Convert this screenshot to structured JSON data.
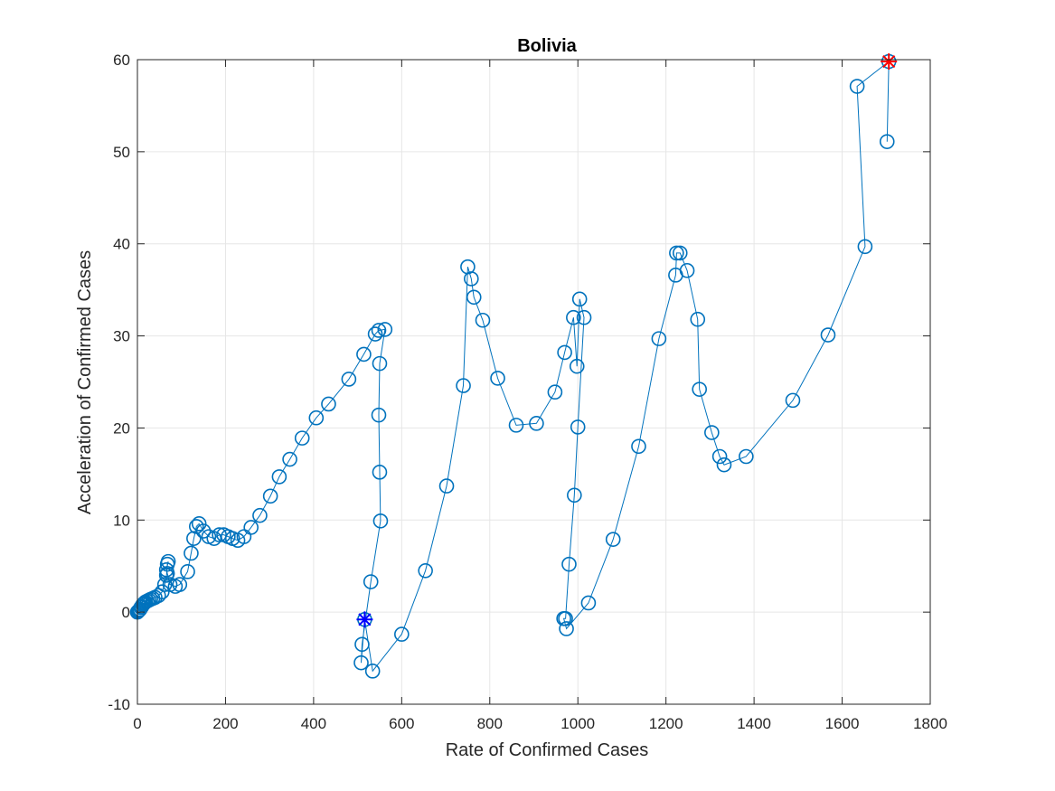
{
  "chart_data": {
    "type": "scatter",
    "title": "Bolivia",
    "xlabel": "Rate of Confirmed Cases",
    "ylabel": "Acceleration of Confirmed Cases",
    "xlim": [
      0,
      1800
    ],
    "ylim": [
      -10,
      60
    ],
    "xticks": [
      0,
      200,
      400,
      600,
      800,
      1000,
      1200,
      1400,
      1600,
      1800
    ],
    "yticks": [
      -10,
      0,
      10,
      20,
      30,
      40,
      50,
      60
    ],
    "xtick_labels": [
      "0",
      "200",
      "400",
      "600",
      "800",
      "1000",
      "1200",
      "1400",
      "1600",
      "1800"
    ],
    "ytick_labels": [
      "-10",
      "0",
      "10",
      "20",
      "30",
      "40",
      "50",
      "60"
    ],
    "grid": true,
    "series": [
      {
        "marker": "circle",
        "line": true,
        "color": "#0072BD",
        "x": [
          0,
          2,
          4,
          6,
          8,
          10,
          12,
          14,
          16,
          18,
          22,
          26,
          30,
          35,
          40,
          48,
          56,
          62,
          66,
          68,
          70,
          66,
          68,
          74,
          86,
          96,
          114,
          122,
          128,
          134,
          140,
          150,
          162,
          174,
          186,
          196,
          206,
          216,
          228,
          242,
          258,
          278,
          302,
          322,
          346,
          374,
          406,
          434,
          480,
          514,
          540,
          548,
          562,
          550,
          548,
          550,
          552,
          530,
          510,
          508,
          516,
          534,
          600,
          654,
          702,
          740,
          750,
          758,
          764,
          784,
          818,
          860,
          906,
          948,
          970,
          990,
          998,
          1004,
          1014,
          1000,
          992,
          980,
          972,
          968,
          974,
          1024,
          1080,
          1138,
          1184,
          1222,
          1224,
          1232,
          1248,
          1272,
          1276,
          1304,
          1322,
          1332,
          1382,
          1488,
          1568,
          1652,
          1634,
          1706,
          1702
        ],
        "y": [
          0,
          0.1,
          0.2,
          0.3,
          0.5,
          0.6,
          0.8,
          0.9,
          1.0,
          1.1,
          1.2,
          1.3,
          1.4,
          1.5,
          1.6,
          1.8,
          2.2,
          3.0,
          4.0,
          5.2,
          5.5,
          4.6,
          4.2,
          3.0,
          2.8,
          3.0,
          4.4,
          6.4,
          8.0,
          9.3,
          9.6,
          8.8,
          8.2,
          8.0,
          8.4,
          8.4,
          8.2,
          8.0,
          7.8,
          8.2,
          9.2,
          10.5,
          12.6,
          14.7,
          16.6,
          18.9,
          21.1,
          22.6,
          25.3,
          28.0,
          30.2,
          30.6,
          30.7,
          27.0,
          21.4,
          15.2,
          9.9,
          3.3,
          -3.5,
          -5.5,
          -0.8,
          -6.4,
          -2.4,
          4.5,
          13.7,
          24.6,
          37.5,
          36.2,
          34.2,
          31.7,
          25.4,
          20.3,
          20.5,
          23.9,
          28.2,
          32.0,
          26.7,
          34.0,
          32.0,
          20.1,
          12.7,
          5.2,
          -0.7,
          -0.7,
          -1.8,
          1.0,
          7.9,
          18.0,
          29.7,
          36.6,
          39.0,
          39.0,
          37.1,
          31.8,
          24.2,
          19.5,
          16.9,
          16.0,
          16.9,
          23.0,
          30.1,
          39.7,
          57.1,
          59.8,
          51.1
        ]
      }
    ],
    "start_marker": {
      "x": 516,
      "y": -0.8,
      "color": "#0000FF"
    },
    "end_marker": {
      "x": 1706,
      "y": 59.8,
      "color": "#FF0000"
    }
  }
}
